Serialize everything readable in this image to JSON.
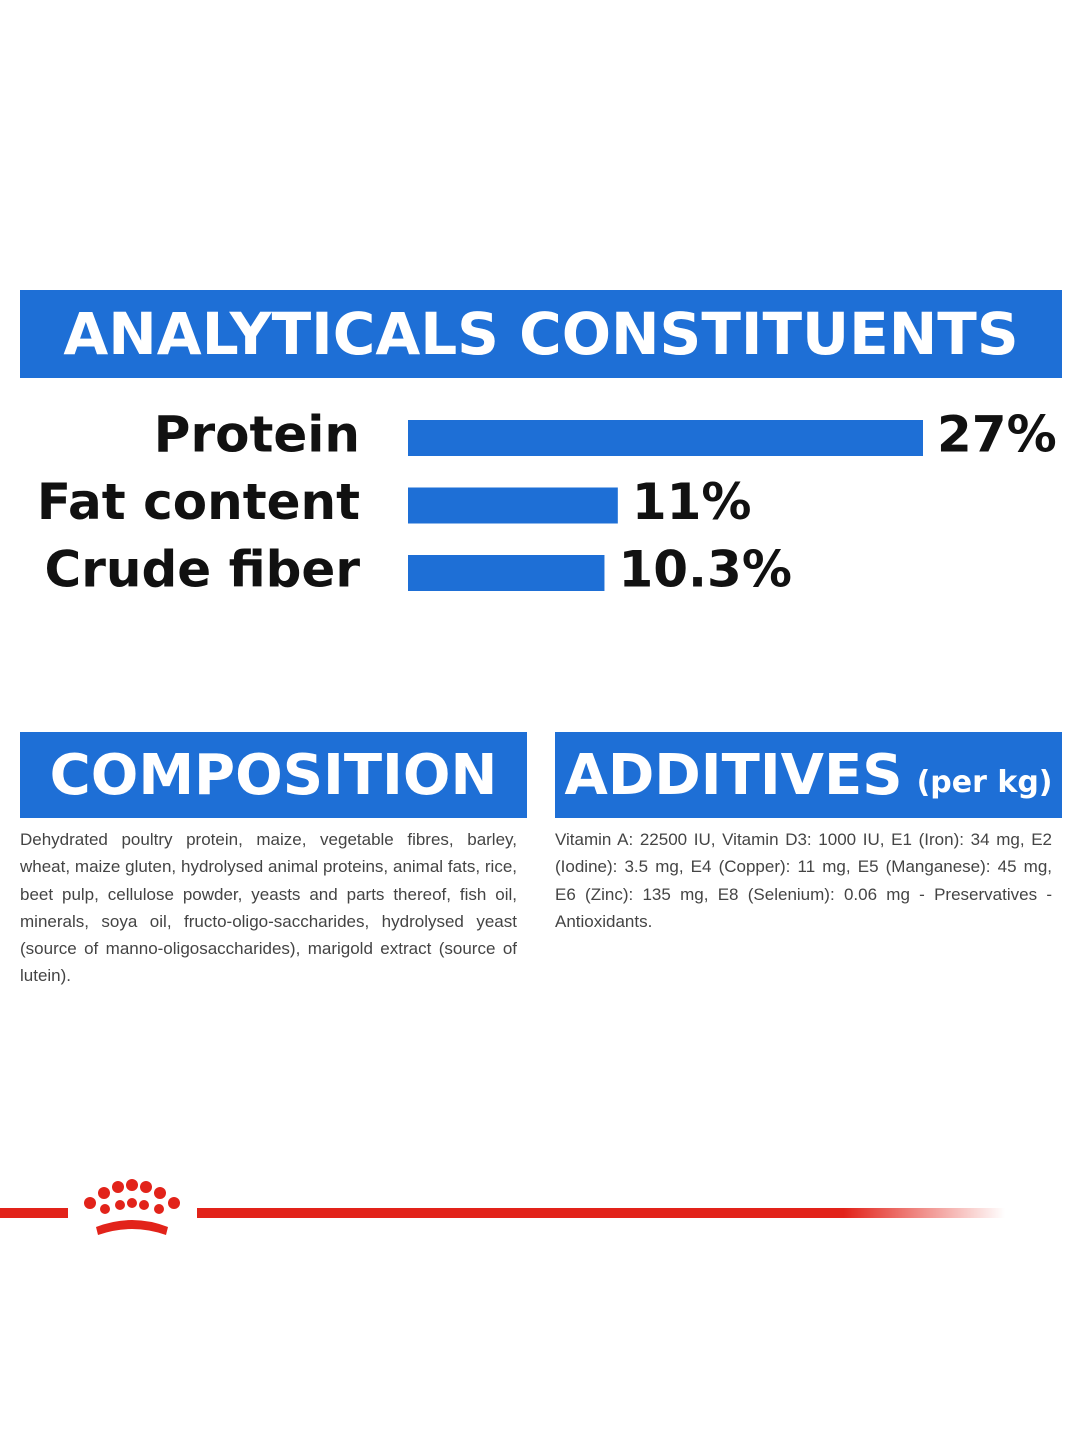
{
  "chart_data": {
    "type": "bar",
    "orientation": "horizontal",
    "title": "ANALYTICALS CONSTITUENTS",
    "categories": [
      "Protein",
      "Fat content",
      "Crude fiber"
    ],
    "values": [
      27,
      11,
      10.3
    ],
    "value_labels": [
      "27%",
      "11%",
      "10.3%"
    ],
    "color": "#1e6fd6"
  },
  "composition": {
    "title": "COMPOSITION",
    "text": "Dehydrated poultry protein, maize, vegetable fibres, barley, wheat, maize gluten, hydrolysed animal proteins, animal fats, rice, beet pulp, cellulose powder, yeasts and parts thereof, fish oil, minerals, soya oil, fructo-oligo-saccharides, hydrolysed yeast (source of manno-oligosaccharides), marigold extract (source of lutein)."
  },
  "additives": {
    "title": "ADDITIVES",
    "unit": "(per kg)",
    "text": "Vitamin A: 22500 IU, Vitamin D3: 1000 IU, E1 (Iron): 34 mg, E2 (Iodine): 3.5 mg, E4 (Copper): 11 mg, E5 (Manganese): 45 mg, E6 (Zinc): 135 mg, E8 (Selenium): 0.06 mg - Preservatives - Antioxidants."
  }
}
